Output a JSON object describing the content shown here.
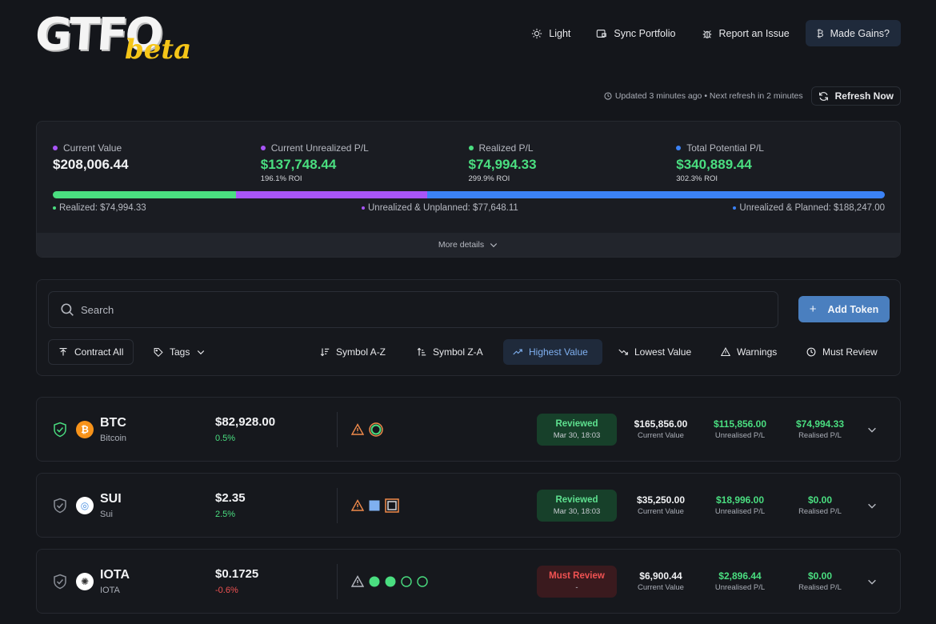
{
  "header": {
    "logo": "GTFO",
    "logo_badge": "beta",
    "nav": {
      "light": "Light",
      "sync": "Sync Portfolio",
      "report": "Report an Issue",
      "gains": "Made Gains?"
    }
  },
  "refresh": {
    "updated": "Updated 3 minutes ago • Next refresh in 2 minutes",
    "button": "Refresh Now"
  },
  "summary": {
    "stats": [
      {
        "label": "Current Value",
        "value": "$208,006.44",
        "roi": "",
        "color": "#a855f7"
      },
      {
        "label": "Current Unrealized P/L",
        "value": "$137,748.44",
        "roi": "196.1% ROI",
        "color": "#a855f7"
      },
      {
        "label": "Realized P/L",
        "value": "$74,994.33",
        "roi": "299.9% ROI",
        "color": "#4ade80"
      },
      {
        "label": "Total Potential P/L",
        "value": "$340,889.44",
        "roi": "302.3% ROI",
        "color": "#3b82f6"
      }
    ],
    "bar": [
      {
        "label": "Realized: $74,994.33",
        "fraction": 0.22,
        "color": "#4ade80"
      },
      {
        "label": "Unrealized & Unplanned: $77,648.11",
        "fraction": 0.23,
        "color": "#a855f7"
      },
      {
        "label": "Unrealized & Planned: $188,247.00",
        "fraction": 0.55,
        "color": "#3b82f6"
      }
    ],
    "more": "More details"
  },
  "filters": {
    "search_placeholder": "Search",
    "add_token": "Add Token",
    "contract_all": "Contract All",
    "tags": "Tags",
    "sort_az": "Symbol A-Z",
    "sort_za": "Symbol Z-A",
    "highest": "Highest Value",
    "lowest": "Lowest Value",
    "warnings": "Warnings",
    "must_review": "Must Review"
  },
  "tokens": [
    {
      "symbol": "BTC",
      "name": "Bitcoin",
      "price": "$82,928.00",
      "change": "0.5%",
      "direction": "up",
      "coin_color": "#f7931a",
      "coin_glyph": "₿",
      "shield_color": "#4ade80",
      "status": "Reviewed",
      "status_sub": "Mar 30, 18:03",
      "status_type": "reviewed",
      "current_value": "$165,856.00",
      "unrealised": "$115,856.00",
      "realised": "$74,994.33",
      "lbl_current": "Current Value",
      "lbl_unrealised": "Unrealised P/L",
      "lbl_realised": "Realised P/L"
    },
    {
      "symbol": "SUI",
      "name": "Sui",
      "price": "$2.35",
      "change": "2.5%",
      "direction": "up",
      "coin_color": "#ffffff",
      "coin_glyph": "◎",
      "shield_color": "#8b8f98",
      "status": "Reviewed",
      "status_sub": "Mar 30, 18:03",
      "status_type": "reviewed",
      "current_value": "$35,250.00",
      "unrealised": "$18,996.00",
      "realised": "$0.00",
      "lbl_current": "Current Value",
      "lbl_unrealised": "Unrealised P/L",
      "lbl_realised": "Realised P/L"
    },
    {
      "symbol": "IOTA",
      "name": "IOTA",
      "price": "$0.1725",
      "change": "-0.6%",
      "direction": "down",
      "coin_color": "#ffffff",
      "coin_glyph": "✺",
      "shield_color": "#8b8f98",
      "status": "Must Review",
      "status_sub": "-",
      "status_type": "must",
      "current_value": "$6,900.44",
      "unrealised": "$2,896.44",
      "realised": "$0.00",
      "lbl_current": "Current Value",
      "lbl_unrealised": "Unrealised P/L",
      "lbl_realised": "Realised P/L"
    }
  ]
}
